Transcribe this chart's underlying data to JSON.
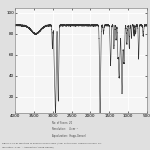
{
  "title": "",
  "xlabel": "",
  "ylabel": "",
  "xmin": 4000,
  "xmax": 500,
  "ymin": 5,
  "ymax": 105,
  "background_color": "#f5f5f5",
  "fig_background": "#e0e0e0",
  "line_color": "#333333",
  "grid_color": "#ffffff",
  "caption_lines": [
    "Figure 2: FT-IR spectrum of fixed oil of Oak seed. (ATR, as thin film, number of scans: 20,",
    "resolution: 4 cm⁻¹, Apodization; Happ-Genzel)."
  ],
  "xticks": [
    4000,
    3500,
    3000,
    2500,
    2000,
    1500,
    1000,
    500
  ],
  "xtick_labels": [
    "4000",
    "3500",
    "3000",
    "2500",
    "2000",
    "1500",
    "1000",
    "500"
  ],
  "yticks": [
    20,
    40,
    60,
    80,
    100
  ],
  "meta1": "No. of Scans: 20",
  "meta2": "Resolution:    4 cm⁻¹",
  "meta3": "Apodization:  Happ-Genzel"
}
